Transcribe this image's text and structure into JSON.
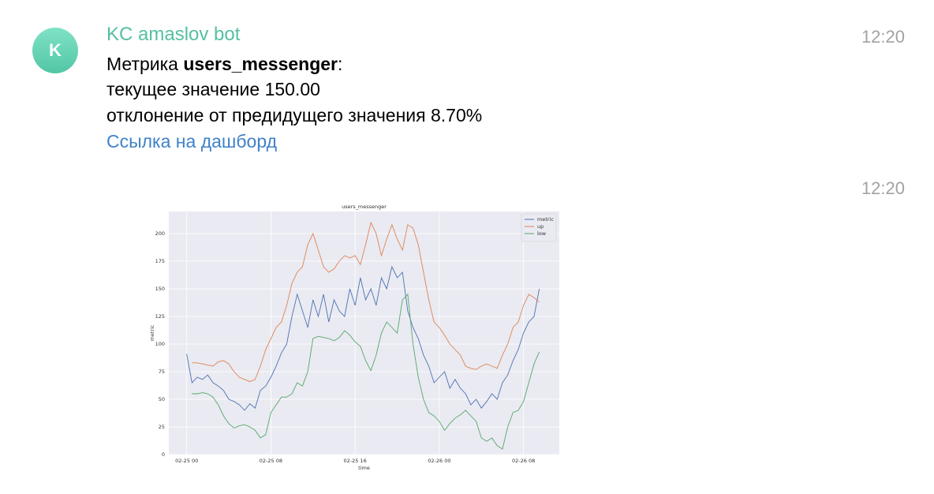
{
  "messages": [
    {
      "avatar": "K",
      "sender": "KC amaslov bot",
      "time": "12:20",
      "line1": {
        "prefix": "Метрика ",
        "metric": "users_messenger",
        "suffix": ":"
      },
      "line2": "текущее значение 150.00",
      "line3": "отклонение от предидущего значения 8.70%",
      "link": "Ссылка на дашборд"
    },
    {
      "time": "12:20"
    }
  ],
  "chart_data": {
    "type": "line",
    "title": "users_messenger",
    "x_label": "time",
    "y_label": "metric",
    "x": [
      0,
      0.5,
      1,
      1.5,
      2,
      2.5,
      3,
      3.5,
      4,
      4.5,
      5,
      5.5,
      6,
      6.5,
      7,
      7.5,
      8,
      8.5,
      9,
      9.5,
      10,
      10.5,
      11,
      11.5,
      12,
      12.5,
      13,
      13.5,
      14,
      14.5,
      15,
      15.5,
      16,
      16.5,
      17,
      17.5,
      18,
      18.5,
      19,
      19.5,
      20,
      20.5,
      21,
      21.5,
      22,
      22.5,
      23,
      23.5,
      24,
      24.5,
      25,
      25.5,
      26,
      26.5,
      27,
      27.5,
      28,
      28.5,
      29,
      29.5,
      30,
      30.5,
      31,
      31.5,
      32,
      32.5,
      33,
      33.5
    ],
    "series": [
      {
        "name": "metric",
        "color": "#4c72b0",
        "values": [
          91,
          65,
          70,
          68,
          72,
          65,
          62,
          58,
          50,
          48,
          45,
          40,
          46,
          42,
          58,
          62,
          70,
          80,
          92,
          100,
          125,
          145,
          130,
          115,
          140,
          125,
          145,
          120,
          140,
          130,
          125,
          150,
          135,
          160,
          140,
          150,
          135,
          160,
          150,
          170,
          160,
          165,
          130,
          115,
          105,
          90,
          80,
          65,
          70,
          75,
          60,
          68,
          60,
          55,
          45,
          50,
          42,
          48,
          55,
          50,
          65,
          72,
          85,
          95,
          110,
          120,
          125,
          150
        ]
      },
      {
        "name": "up",
        "color": "#dd8452",
        "values": [
          null,
          83,
          83,
          82,
          81,
          80,
          84,
          85,
          82,
          75,
          70,
          68,
          66,
          68,
          80,
          95,
          105,
          115,
          120,
          135,
          155,
          165,
          170,
          190,
          200,
          185,
          170,
          165,
          168,
          175,
          180,
          178,
          180,
          172,
          190,
          210,
          200,
          180,
          195,
          208,
          195,
          185,
          208,
          205,
          190,
          165,
          140,
          120,
          115,
          108,
          100,
          95,
          90,
          80,
          78,
          77,
          80,
          82,
          80,
          78,
          90,
          100,
          115,
          120,
          135,
          145,
          142,
          138
        ]
      },
      {
        "name": "low",
        "color": "#55a868",
        "values": [
          null,
          55,
          55,
          56,
          55,
          52,
          45,
          35,
          28,
          24,
          26,
          27,
          25,
          22,
          15,
          18,
          38,
          45,
          52,
          52,
          55,
          65,
          62,
          75,
          105,
          107,
          106,
          105,
          103,
          106,
          112,
          108,
          102,
          98,
          85,
          76,
          90,
          110,
          120,
          115,
          110,
          140,
          145,
          100,
          70,
          50,
          38,
          35,
          30,
          22,
          28,
          33,
          36,
          40,
          35,
          30,
          15,
          12,
          15,
          8,
          5,
          25,
          38,
          40,
          48,
          65,
          82,
          93
        ]
      }
    ],
    "xlim": [
      -1.7,
      35.4
    ],
    "ylim": [
      0,
      220
    ],
    "xticks": [
      {
        "value": 0,
        "label": "02-25 00"
      },
      {
        "value": 8,
        "label": "02-25 08"
      },
      {
        "value": 16,
        "label": "02-25 16"
      },
      {
        "value": 24,
        "label": "02-26 00"
      },
      {
        "value": 32,
        "label": "02-26 08"
      }
    ],
    "yticks": [
      0,
      25,
      50,
      75,
      100,
      125,
      150,
      175,
      200
    ],
    "grid": true,
    "legend": "upper right"
  }
}
